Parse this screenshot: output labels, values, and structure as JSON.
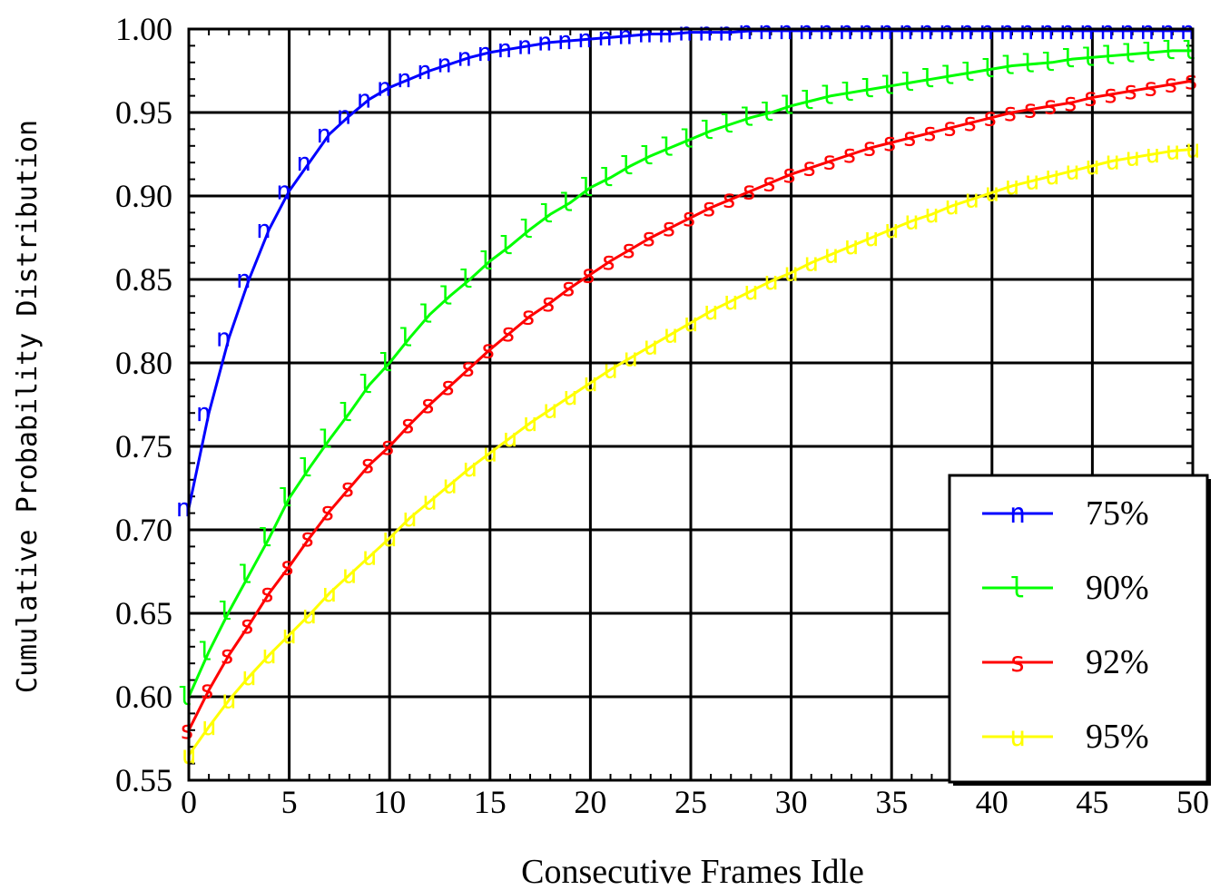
{
  "chart_data": {
    "type": "line",
    "xlabel": "Consecutive Frames Idle",
    "ylabel": "Cumulative Probability Distribution",
    "xlim": [
      0,
      50
    ],
    "ylim": [
      0.55,
      1.0
    ],
    "x_ticks": [
      0,
      5,
      10,
      15,
      20,
      25,
      30,
      35,
      40,
      45,
      50
    ],
    "x_tick_labels": [
      "0",
      "5",
      "10",
      "15",
      "20",
      "25",
      "30",
      "35",
      "40",
      "45",
      "50"
    ],
    "y_ticks": [
      0.55,
      0.6,
      0.65,
      0.7,
      0.75,
      0.8,
      0.85,
      0.9,
      0.95,
      1.0
    ],
    "y_tick_labels": [
      "0.55",
      "0.60",
      "0.65",
      "0.70",
      "0.75",
      "0.80",
      "0.85",
      "0.90",
      "0.95",
      "1.00"
    ],
    "grid": true,
    "legend_position": "bottom-right",
    "x": [
      0,
      1,
      2,
      3,
      4,
      5,
      6,
      7,
      8,
      9,
      10,
      11,
      12,
      13,
      14,
      15,
      16,
      17,
      18,
      19,
      20,
      21,
      22,
      23,
      24,
      25,
      26,
      27,
      28,
      29,
      30,
      31,
      32,
      33,
      34,
      35,
      36,
      37,
      38,
      39,
      40,
      41,
      42,
      43,
      44,
      45,
      46,
      47,
      48,
      49,
      50
    ],
    "series": [
      {
        "name": "75%",
        "marker": "n",
        "color": "#0000ff",
        "values": [
          0.713,
          0.77,
          0.815,
          0.85,
          0.88,
          0.903,
          0.92,
          0.937,
          0.948,
          0.958,
          0.965,
          0.97,
          0.975,
          0.979,
          0.983,
          0.986,
          0.988,
          0.99,
          0.992,
          0.993,
          0.994,
          0.995,
          0.996,
          0.997,
          0.997,
          0.998,
          0.998,
          0.998,
          0.999,
          0.999,
          0.999,
          0.999,
          0.999,
          0.999,
          0.999,
          0.999,
          0.999,
          0.999,
          0.999,
          0.999,
          0.999,
          0.999,
          0.999,
          0.999,
          0.999,
          0.999,
          0.999,
          0.999,
          0.999,
          0.999,
          0.999
        ]
      },
      {
        "name": "90%",
        "marker": "l",
        "color": "#00ff00",
        "values": [
          0.6,
          0.627,
          0.651,
          0.673,
          0.695,
          0.719,
          0.737,
          0.754,
          0.77,
          0.787,
          0.8,
          0.815,
          0.829,
          0.84,
          0.85,
          0.861,
          0.87,
          0.88,
          0.889,
          0.896,
          0.905,
          0.911,
          0.918,
          0.924,
          0.929,
          0.934,
          0.939,
          0.943,
          0.947,
          0.95,
          0.954,
          0.957,
          0.96,
          0.962,
          0.964,
          0.966,
          0.968,
          0.97,
          0.972,
          0.974,
          0.976,
          0.978,
          0.979,
          0.98,
          0.982,
          0.983,
          0.984,
          0.985,
          0.986,
          0.987,
          0.987
        ]
      },
      {
        "name": "92%",
        "marker": "s",
        "color": "#ff0000",
        "values": [
          0.58,
          0.604,
          0.625,
          0.643,
          0.662,
          0.678,
          0.695,
          0.711,
          0.725,
          0.739,
          0.75,
          0.763,
          0.775,
          0.786,
          0.797,
          0.808,
          0.818,
          0.828,
          0.836,
          0.845,
          0.853,
          0.861,
          0.868,
          0.875,
          0.881,
          0.887,
          0.893,
          0.898,
          0.903,
          0.908,
          0.913,
          0.917,
          0.921,
          0.925,
          0.929,
          0.932,
          0.935,
          0.938,
          0.941,
          0.944,
          0.947,
          0.95,
          0.952,
          0.954,
          0.956,
          0.959,
          0.961,
          0.963,
          0.965,
          0.967,
          0.969
        ]
      },
      {
        "name": "95%",
        "marker": "u",
        "color": "#ffff00",
        "values": [
          0.565,
          0.582,
          0.598,
          0.612,
          0.625,
          0.637,
          0.649,
          0.662,
          0.673,
          0.684,
          0.695,
          0.707,
          0.717,
          0.727,
          0.737,
          0.746,
          0.755,
          0.764,
          0.772,
          0.78,
          0.788,
          0.796,
          0.803,
          0.81,
          0.817,
          0.824,
          0.831,
          0.837,
          0.843,
          0.849,
          0.854,
          0.86,
          0.865,
          0.87,
          0.875,
          0.88,
          0.885,
          0.889,
          0.894,
          0.898,
          0.902,
          0.906,
          0.909,
          0.912,
          0.915,
          0.918,
          0.921,
          0.923,
          0.925,
          0.927,
          0.928
        ]
      }
    ]
  }
}
